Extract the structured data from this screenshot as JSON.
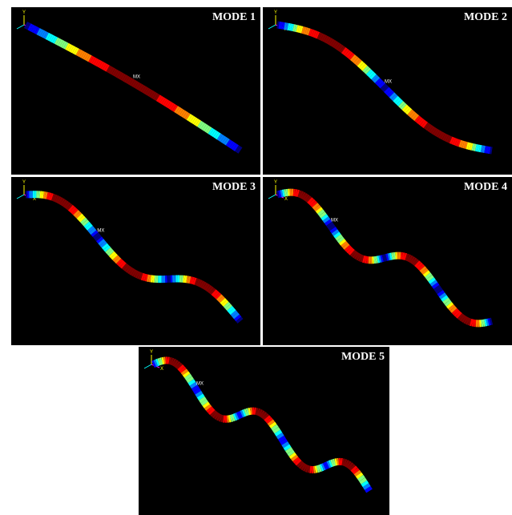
{
  "panels": [
    {
      "title": "MODE 1",
      "marker": "MX"
    },
    {
      "title": "MODE 2",
      "marker": "MX"
    },
    {
      "title": "MODE 3",
      "marker": "MX"
    },
    {
      "title": "MODE 4",
      "marker": "MX"
    },
    {
      "title": "MODE 5",
      "marker": "MX"
    }
  ],
  "axis_labels": [
    "Y",
    "X"
  ]
}
